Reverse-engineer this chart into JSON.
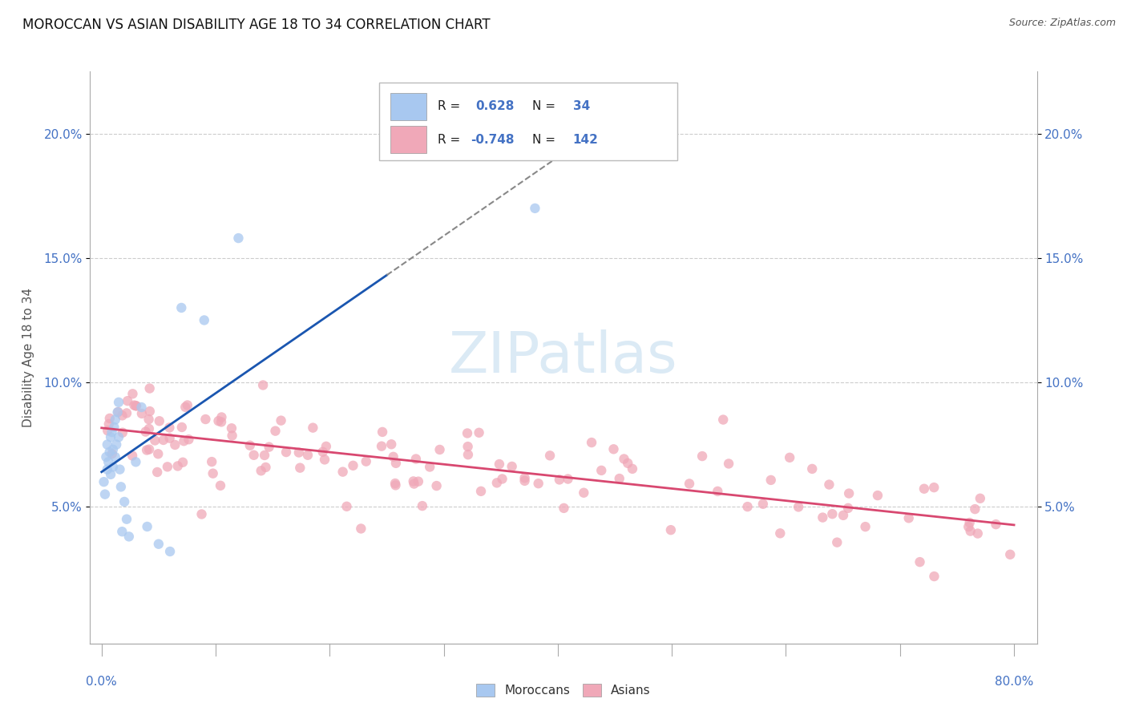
{
  "title": "MOROCCAN VS ASIAN DISABILITY AGE 18 TO 34 CORRELATION CHART",
  "source": "Source: ZipAtlas.com",
  "ylabel": "Disability Age 18 to 34",
  "xlim": [
    0.0,
    0.8
  ],
  "ylim": [
    0.0,
    0.22
  ],
  "yticks": [
    0.05,
    0.1,
    0.15,
    0.2
  ],
  "ytick_labels": [
    "5.0%",
    "10.0%",
    "15.0%",
    "20.0%"
  ],
  "moroccan_color": "#A8C8F0",
  "asian_color": "#F0A8B8",
  "moroccan_line_color": "#1A56B0",
  "asian_line_color": "#D84870",
  "background_color": "#FFFFFF",
  "grid_color": "#CCCCCC",
  "moroccan_R": 0.628,
  "moroccan_N": 34,
  "asian_R": -0.748,
  "asian_N": 142
}
